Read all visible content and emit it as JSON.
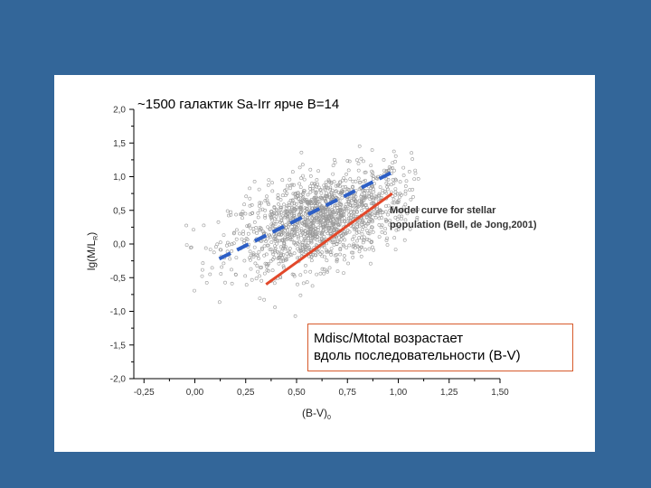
{
  "title": "~1500 галактик  Sa-Irr ярче B=14",
  "model_note": [
    "Model curve for stellar",
    "population (Bell, de Jong,2001)"
  ],
  "conclusion": [
    "Mdisc/Mtotal возрастает",
    "вдоль последовательности (B-V)"
  ],
  "colors": {
    "background": "#336699",
    "panel": "#ffffff",
    "points": "#9a9a9a",
    "model_curve": "#2d5fc6",
    "fit_line": "#e2482a",
    "box_border": "#d75a2b"
  },
  "chart_data": {
    "type": "scatter",
    "xlabel": "(B-V)",
    "xlabel_sub": "0",
    "ylabel": "lg(M/L",
    "ylabel_sub": "R",
    "ylabel_close": ")",
    "xlim": [
      -0.3,
      1.5
    ],
    "ylim": [
      -2.0,
      2.0
    ],
    "x_ticks": [
      {
        "v": -0.25,
        "label": "-0,25"
      },
      {
        "v": 0.0,
        "label": "0,00"
      },
      {
        "v": 0.25,
        "label": "0,25"
      },
      {
        "v": 0.5,
        "label": "0,50"
      },
      {
        "v": 0.75,
        "label": "0,75"
      },
      {
        "v": 1.0,
        "label": "1,00"
      },
      {
        "v": 1.25,
        "label": "1,25"
      },
      {
        "v": 1.5,
        "label": "1,50"
      }
    ],
    "y_ticks": [
      {
        "v": 2.0,
        "label": "2,0"
      },
      {
        "v": 1.5,
        "label": "1,5"
      },
      {
        "v": 1.0,
        "label": "1,0"
      },
      {
        "v": 0.5,
        "label": "0,5"
      },
      {
        "v": 0.0,
        "label": "0,0"
      },
      {
        "v": -0.5,
        "label": "-0,5"
      },
      {
        "v": -1.0,
        "label": "-1,0"
      },
      {
        "v": -1.5,
        "label": "-1,5"
      },
      {
        "v": -2.0,
        "label": "-2,0"
      }
    ],
    "point_cloud": {
      "count": 1500,
      "center_x": 0.62,
      "center_y": 0.35,
      "slope": 0.75,
      "spread_x": 0.22,
      "spread_y": 0.33
    },
    "model_curve": {
      "x": [
        0.12,
        0.98
      ],
      "y": [
        -0.22,
        1.08
      ]
    },
    "fit_line": {
      "x": [
        0.35,
        0.97
      ],
      "y": [
        -0.6,
        0.75
      ]
    },
    "grid": false
  }
}
